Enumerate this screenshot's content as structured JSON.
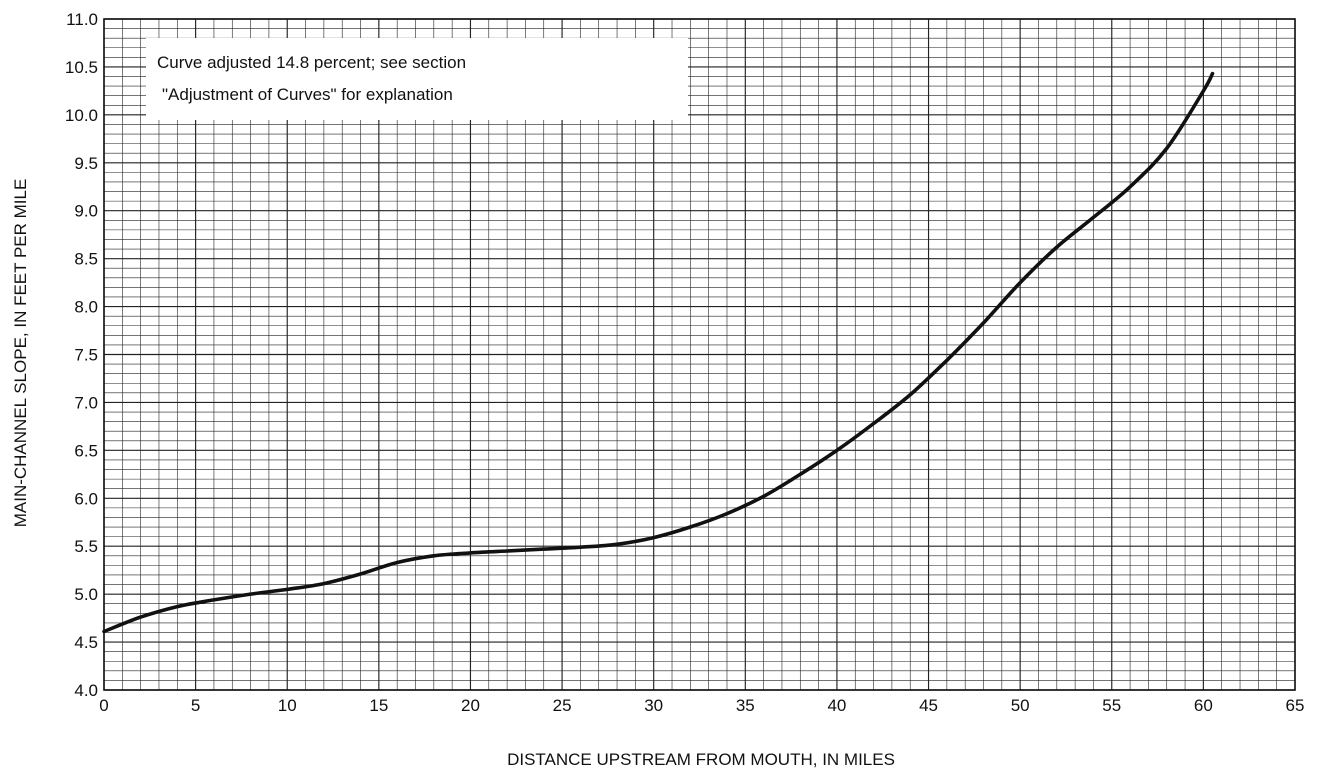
{
  "chart_data": {
    "type": "line",
    "title": "",
    "xlabel": "DISTANCE UPSTREAM FROM MOUTH, IN MILES",
    "ylabel": "MAIN-CHANNEL SLOPE, IN FEET PER MILE",
    "xlim": [
      0,
      65
    ],
    "ylim": [
      4.0,
      11.0
    ],
    "x_ticks": [
      "0",
      "5",
      "10",
      "15",
      "20",
      "25",
      "30",
      "35",
      "40",
      "45",
      "50",
      "55",
      "60",
      "65"
    ],
    "y_ticks": [
      "4.0",
      "4.5",
      "5.0",
      "5.5",
      "6.0",
      "6.5",
      "7.0",
      "7.5",
      "8.0",
      "8.5",
      "9.0",
      "9.5",
      "10.0",
      "10.5",
      "11.0"
    ],
    "grid": true,
    "grid_minor_x": 1,
    "grid_minor_y": 0.1,
    "legend": "none",
    "annotation": {
      "lines": [
        "Curve adjusted 14.8 percent; see section",
        "\"Adjustment of Curves\" for explanation"
      ],
      "placement": "top-left"
    },
    "series": [
      {
        "color": "#111111",
        "x": [
          0,
          2,
          4,
          6,
          8,
          10,
          12,
          14,
          16,
          18,
          20,
          22,
          24,
          26,
          28,
          30,
          32,
          34,
          36,
          38,
          40,
          42,
          44,
          46,
          48,
          50,
          52,
          54,
          56,
          58,
          60,
          60.5
        ],
        "y": [
          4.61,
          4.76,
          4.87,
          4.94,
          5.0,
          5.05,
          5.11,
          5.21,
          5.33,
          5.4,
          5.43,
          5.45,
          5.47,
          5.49,
          5.52,
          5.59,
          5.7,
          5.84,
          6.02,
          6.25,
          6.5,
          6.78,
          7.08,
          7.44,
          7.83,
          8.25,
          8.62,
          8.93,
          9.25,
          9.65,
          10.25,
          10.43
        ]
      }
    ]
  }
}
